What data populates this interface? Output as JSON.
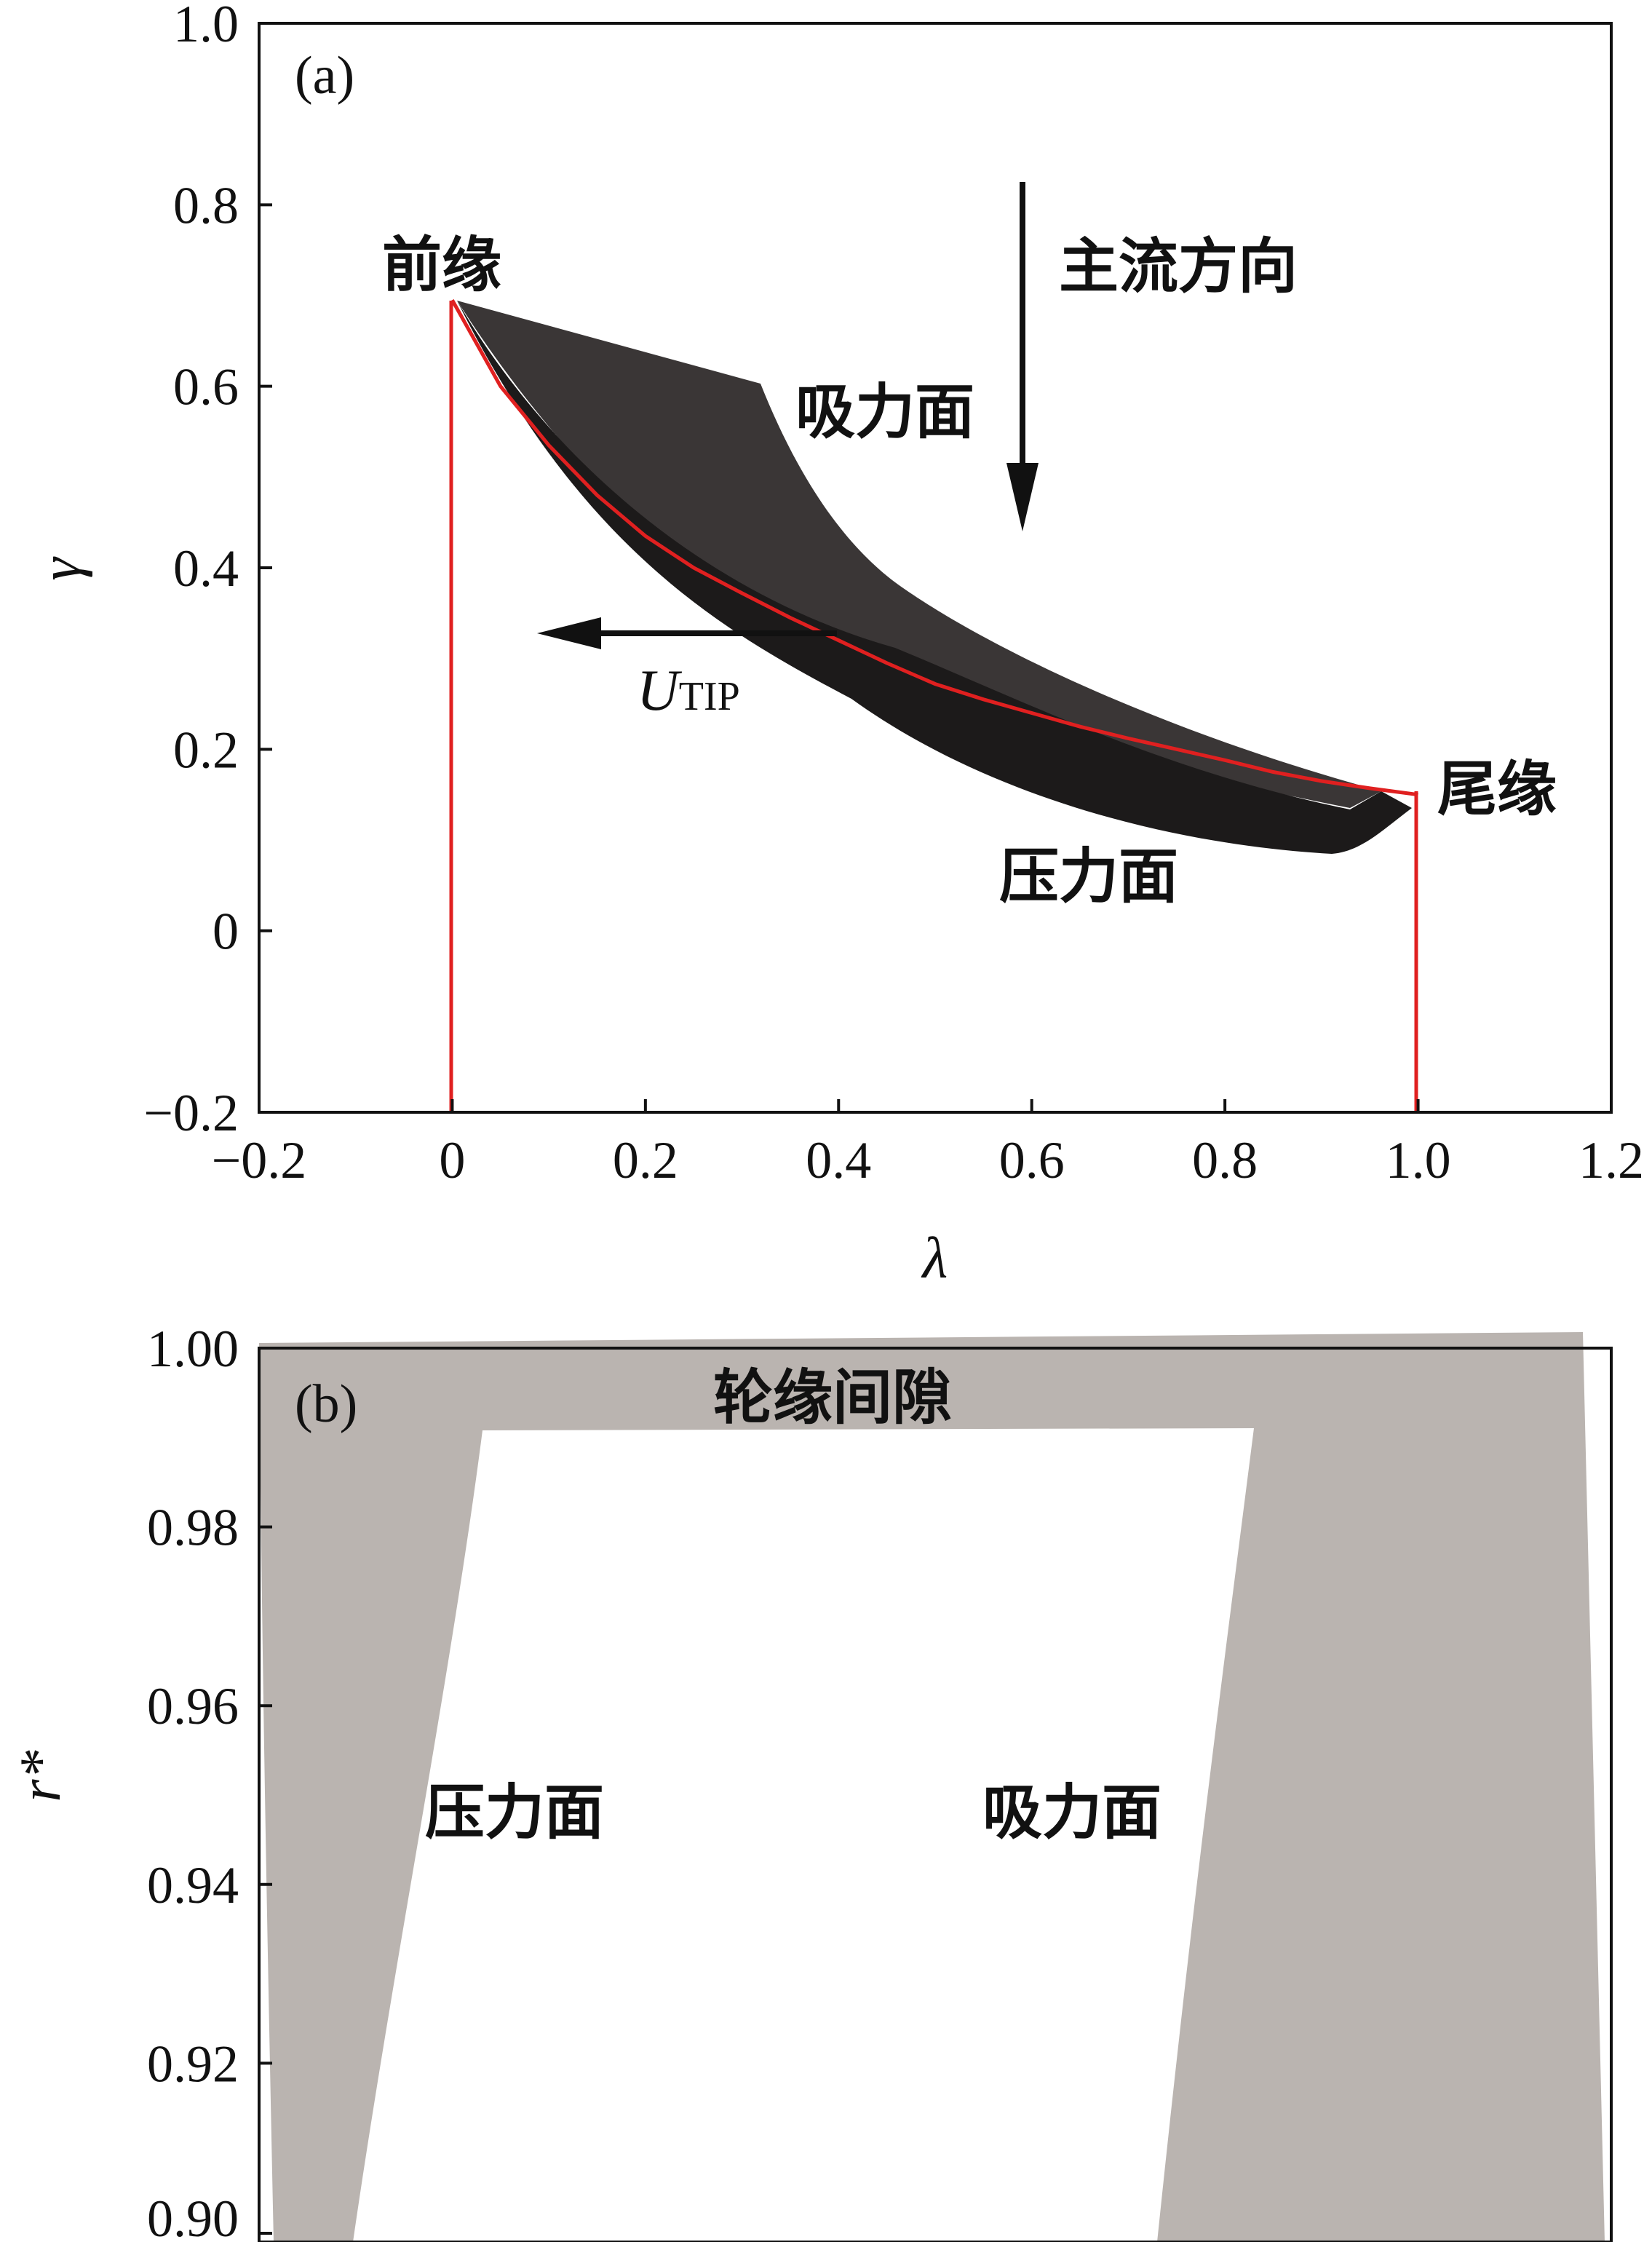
{
  "chart_data": [
    {
      "type": "diagram",
      "panel_label": "(a)",
      "xlabel": "λ",
      "ylabel": "γ",
      "xlim": [
        -0.2,
        1.2
      ],
      "ylim": [
        -0.2,
        1.0
      ],
      "x_ticks": [
        "−0.2",
        "0",
        "0.2",
        "0.4",
        "0.6",
        "0.8",
        "1.0",
        "1.2"
      ],
      "y_ticks": [
        "−0.2",
        "0",
        "0.2",
        "0.4",
        "0.6",
        "0.8",
        "1.0"
      ],
      "camber_line": {
        "color": "#e02020",
        "points": [
          [
            0.0,
            0.695
          ],
          [
            0.05,
            0.6
          ],
          [
            0.1,
            0.535
          ],
          [
            0.15,
            0.48
          ],
          [
            0.2,
            0.435
          ],
          [
            0.25,
            0.4
          ],
          [
            0.3,
            0.372
          ],
          [
            0.35,
            0.345
          ],
          [
            0.4,
            0.32
          ],
          [
            0.45,
            0.295
          ],
          [
            0.5,
            0.272
          ],
          [
            0.55,
            0.255
          ],
          [
            0.6,
            0.24
          ],
          [
            0.65,
            0.225
          ],
          [
            0.7,
            0.212
          ],
          [
            0.75,
            0.2
          ],
          [
            0.8,
            0.188
          ],
          [
            0.85,
            0.175
          ],
          [
            0.9,
            0.165
          ],
          [
            0.95,
            0.157
          ],
          [
            1.0,
            0.15
          ]
        ]
      },
      "leading_edge_line": {
        "x": 0.0,
        "y_from": -0.2,
        "y_to": 0.695
      },
      "trailing_edge_line": {
        "x": 1.0,
        "y_from": -0.2,
        "y_to": 0.15
      },
      "annotations": {
        "leading_edge": "前缘",
        "trailing_edge": "尾缘",
        "suction_side": "吸力面",
        "pressure_side": "压力面",
        "main_flow_direction": "主流方向",
        "utip_main": "U",
        "utip_sub": "TIP"
      },
      "colors": {
        "blade_dark": "#3a3636",
        "blade_darker": "#1c1a1a",
        "camber": "#e02020"
      }
    },
    {
      "type": "diagram",
      "panel_label": "(b)",
      "ylabel": "r*",
      "ylim": [
        0.9,
        1.0
      ],
      "y_ticks": [
        "0.90",
        "0.92",
        "0.94",
        "0.96",
        "0.98",
        "1.00"
      ],
      "annotations": {
        "tip_clearance": "轮缘间隙",
        "pressure_side": "压力面",
        "suction_side": "吸力面"
      },
      "colors": {
        "blade_gray": "#bab4b0"
      }
    }
  ]
}
